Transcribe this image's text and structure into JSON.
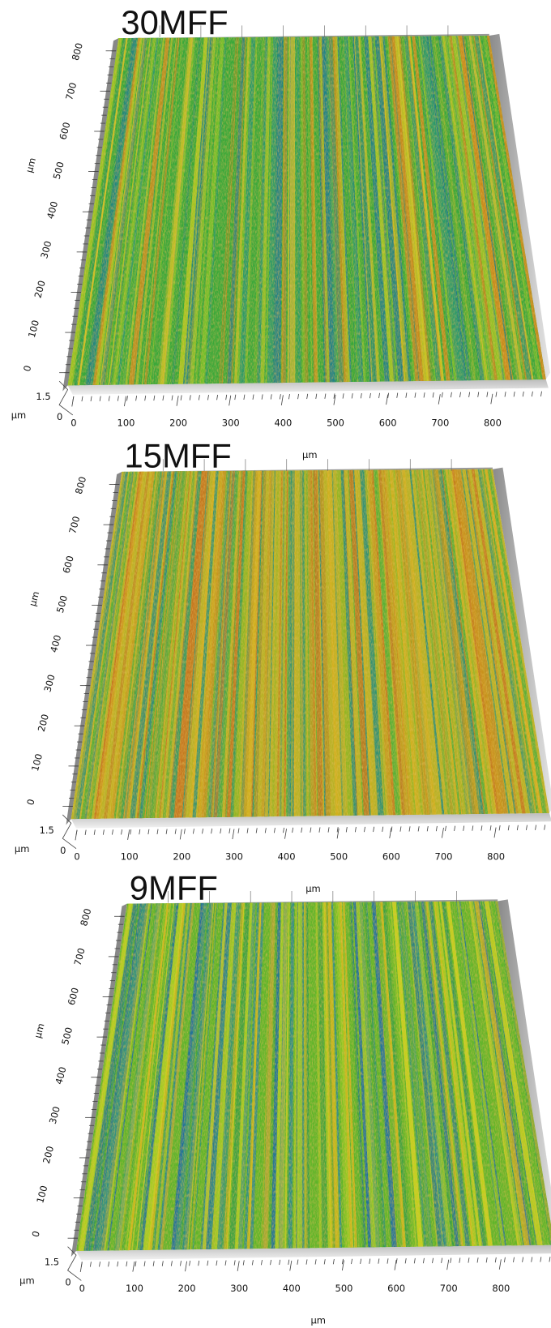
{
  "panels": [
    {
      "title": "30MFF",
      "x_unit": "µm",
      "y_unit": "µm",
      "z_unit": "µm",
      "xticks": [
        0,
        100,
        200,
        300,
        400,
        500,
        600,
        700,
        800
      ],
      "yticks": [
        0,
        100,
        200,
        300,
        400,
        500,
        600,
        700,
        800
      ],
      "zticks": [
        0,
        1.5
      ]
    },
    {
      "title": "15MFF",
      "x_unit": "µm",
      "y_unit": "µm",
      "z_unit": "µm",
      "xticks": [
        0,
        100,
        200,
        300,
        400,
        500,
        600,
        700,
        800
      ],
      "yticks": [
        0,
        100,
        200,
        300,
        400,
        500,
        600,
        700,
        800
      ],
      "zticks": [
        0,
        1.5
      ]
    },
    {
      "title": "9MFF",
      "x_unit": "µm",
      "y_unit": "µm",
      "z_unit": "µm",
      "xticks": [
        0,
        100,
        200,
        300,
        400,
        500,
        600,
        700,
        800
      ],
      "yticks": [
        0,
        100,
        200,
        300,
        400,
        500,
        600,
        700,
        800
      ],
      "zticks": [
        0,
        1.5
      ]
    }
  ]
}
